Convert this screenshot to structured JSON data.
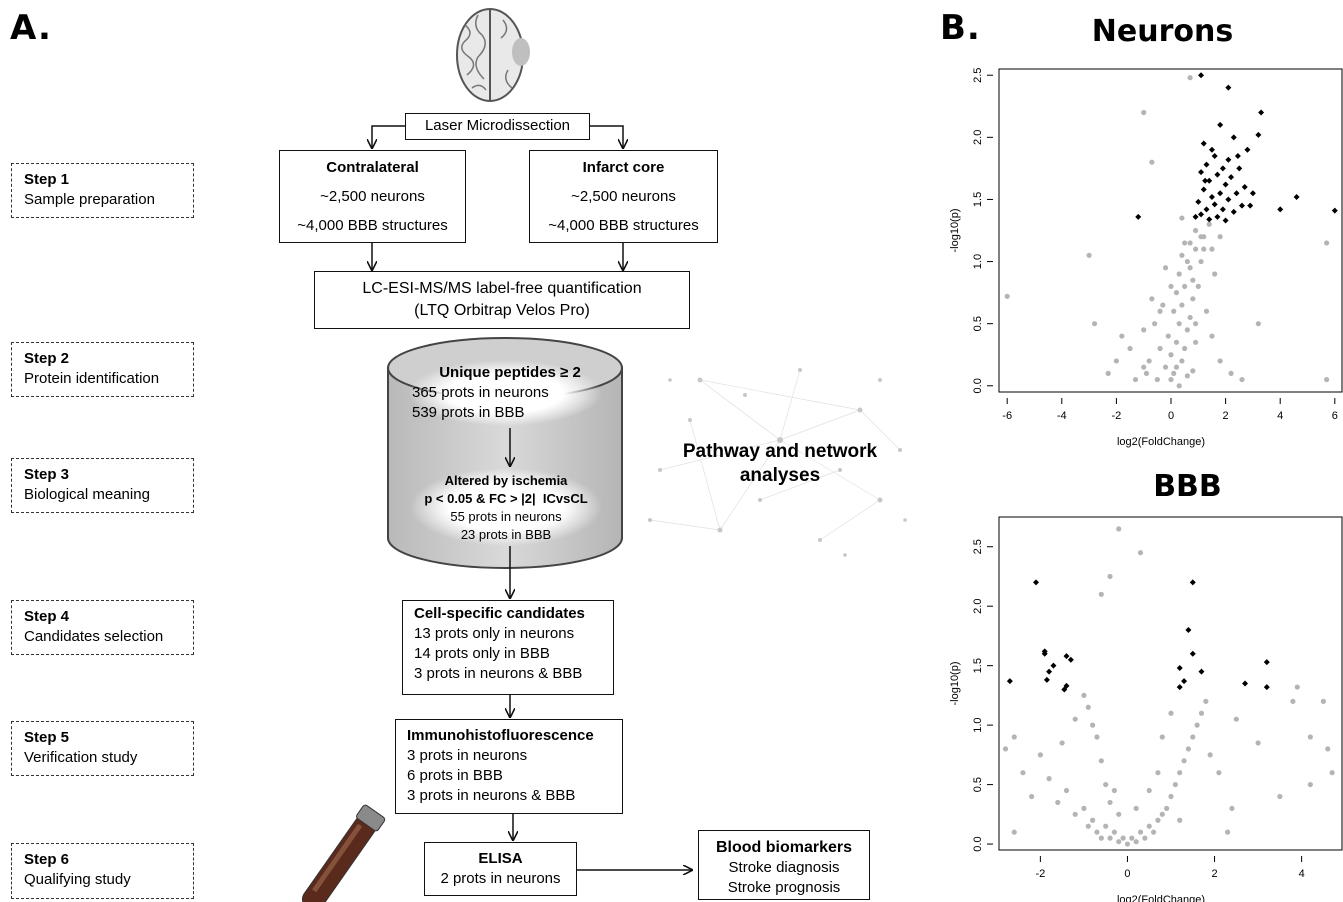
{
  "panel_a_label": "A.",
  "panel_b_label": "B.",
  "steps": [
    {
      "title": "Step 1",
      "desc": "Sample preparation"
    },
    {
      "title": "Step 2",
      "desc": "Protein identification"
    },
    {
      "title": "Step 3",
      "desc": "Biological meaning"
    },
    {
      "title": "Step 4",
      "desc": "Candidates selection"
    },
    {
      "title": "Step 5",
      "desc": "Verification study"
    },
    {
      "title": "Step 6",
      "desc": "Qualifying study"
    }
  ],
  "flow": {
    "laser": "Laser Microdissection",
    "contralateral": {
      "title": "Contralateral",
      "line1": "~2,500 neurons",
      "line2": "~4,000 BBB structures"
    },
    "infarct": {
      "title": "Infarct core",
      "line1": "~2,500 neurons",
      "line2": "~4,000 BBB structures"
    },
    "lcms": {
      "line1": "LC-ESI-MS/MS label-free quantification",
      "line2": "(LTQ Orbitrap Velos Pro)"
    },
    "unique": {
      "title": "Unique peptides ≥ 2",
      "line1": "365 prots in neurons",
      "line2": "539 prots in BBB"
    },
    "altered": {
      "title": "Altered by ischemia",
      "line1": "p < 0.05 & FC > |2|  ICvsCL",
      "line2": "55 prots in neurons",
      "line3": "23 prots in BBB"
    },
    "network": {
      "line1": "Pathway and network",
      "line2": "analyses"
    },
    "candidates": {
      "title": "Cell-specific candidates",
      "line1": "13 prots only in neurons",
      "line2": "14 prots only in BBB",
      "line3": "3 prots in neurons & BBB"
    },
    "ihf": {
      "title": "Immunohistofluorescence",
      "line1": "3 prots in neurons",
      "line2": "6 prots in BBB",
      "line3": "3 prots in neurons & BBB"
    },
    "elisa": {
      "title": "ELISA",
      "line1": "2 prots in neurons"
    },
    "biomarkers": {
      "title": "Blood biomarkers",
      "line1": "Stroke diagnosis",
      "line2": "Stroke prognosis"
    }
  },
  "colors": {
    "significant": "#000000",
    "nonsignificant": "#b4b4b4"
  },
  "chart_data": [
    {
      "type": "scatter",
      "title": "Neurons",
      "xlabel": "log2(FoldChange)",
      "ylabel": "-log10(p)",
      "xlim": [
        -6.3,
        6.3
      ],
      "ylim": [
        -0.05,
        2.55
      ],
      "xticks": [
        "-6",
        "-4",
        "-2",
        "0",
        "2",
        "4",
        "6"
      ],
      "yticks": [
        "0.0",
        "0.5",
        "1.0",
        "1.5",
        "2.0",
        "2.5"
      ],
      "series": [
        {
          "points": [
            [
              1.1,
              2.5
            ],
            [
              2.1,
              2.4
            ],
            [
              3.3,
              2.2
            ],
            [
              1.8,
              2.1
            ],
            [
              2.3,
              2.0
            ],
            [
              3.2,
              2.02
            ],
            [
              1.2,
              1.95
            ],
            [
              1.5,
              1.9
            ],
            [
              2.8,
              1.9
            ],
            [
              1.6,
              1.85
            ],
            [
              2.1,
              1.82
            ],
            [
              1.3,
              1.78
            ],
            [
              1.9,
              1.75
            ],
            [
              2.5,
              1.75
            ],
            [
              1.1,
              1.72
            ],
            [
              1.7,
              1.7
            ],
            [
              2.2,
              1.68
            ],
            [
              1.4,
              1.65
            ],
            [
              2.0,
              1.62
            ],
            [
              2.7,
              1.6
            ],
            [
              1.2,
              1.58
            ],
            [
              1.8,
              1.55
            ],
            [
              2.4,
              1.55
            ],
            [
              3.0,
              1.55
            ],
            [
              1.5,
              1.52
            ],
            [
              2.1,
              1.5
            ],
            [
              1.0,
              1.48
            ],
            [
              1.6,
              1.46
            ],
            [
              2.6,
              1.45
            ],
            [
              1.3,
              1.42
            ],
            [
              1.9,
              1.42
            ],
            [
              2.3,
              1.4
            ],
            [
              1.1,
              1.38
            ],
            [
              1.7,
              1.36
            ],
            [
              0.9,
              1.36
            ],
            [
              1.4,
              1.34
            ],
            [
              2.0,
              1.33
            ],
            [
              -1.2,
              1.36
            ],
            [
              4.0,
              1.42
            ],
            [
              4.6,
              1.52
            ],
            [
              6.0,
              1.41
            ],
            [
              2.9,
              1.45
            ],
            [
              1.25,
              1.65
            ],
            [
              2.45,
              1.85
            ]
          ]
        },
        {
          "points": [
            [
              0.3,
              0.0
            ],
            [
              -0.5,
              0.05
            ],
            [
              0.1,
              0.1
            ],
            [
              0.6,
              0.08
            ],
            [
              -0.2,
              0.15
            ],
            [
              0.4,
              0.2
            ],
            [
              0.8,
              0.12
            ],
            [
              -0.8,
              0.2
            ],
            [
              0.0,
              0.25
            ],
            [
              0.5,
              0.3
            ],
            [
              -0.4,
              0.3
            ],
            [
              0.2,
              0.35
            ],
            [
              0.9,
              0.35
            ],
            [
              -0.1,
              0.4
            ],
            [
              0.6,
              0.45
            ],
            [
              0.3,
              0.5
            ],
            [
              -0.6,
              0.5
            ],
            [
              0.7,
              0.55
            ],
            [
              0.1,
              0.6
            ],
            [
              0.4,
              0.65
            ],
            [
              -0.3,
              0.65
            ],
            [
              0.8,
              0.7
            ],
            [
              0.2,
              0.75
            ],
            [
              0.5,
              0.8
            ],
            [
              1.0,
              0.8
            ],
            [
              0.3,
              0.9
            ],
            [
              0.7,
              0.95
            ],
            [
              0.6,
              1.0
            ],
            [
              1.1,
              1.0
            ],
            [
              0.4,
              1.05
            ],
            [
              0.9,
              1.1
            ],
            [
              0.7,
              1.15
            ],
            [
              1.2,
              1.2
            ],
            [
              0.9,
              1.25
            ],
            [
              1.4,
              1.3
            ],
            [
              1.1,
              1.2
            ],
            [
              0.5,
              1.15
            ],
            [
              0.8,
              0.85
            ],
            [
              -0.9,
              0.1
            ],
            [
              -1.3,
              0.05
            ],
            [
              -1.8,
              0.4
            ],
            [
              -2.3,
              0.1
            ],
            [
              -2.8,
              0.5
            ],
            [
              -3.0,
              1.05
            ],
            [
              -6.0,
              0.72
            ],
            [
              -2.0,
              0.2
            ],
            [
              -1.5,
              0.3
            ],
            [
              -1.0,
              0.45
            ],
            [
              -0.7,
              0.7
            ],
            [
              -0.2,
              0.95
            ],
            [
              0.0,
              0.8
            ],
            [
              -1.0,
              0.15
            ],
            [
              1.5,
              0.4
            ],
            [
              1.8,
              0.2
            ],
            [
              2.2,
              0.1
            ],
            [
              2.6,
              0.05
            ],
            [
              3.2,
              0.5
            ],
            [
              5.7,
              0.05
            ],
            [
              5.7,
              1.15
            ],
            [
              0.2,
              0.15
            ],
            [
              0.0,
              0.05
            ],
            [
              -0.4,
              0.6
            ],
            [
              1.3,
              0.6
            ],
            [
              0.9,
              0.5
            ],
            [
              1.6,
              0.9
            ],
            [
              1.8,
              1.2
            ],
            [
              -0.7,
              1.8
            ],
            [
              -1.0,
              2.2
            ],
            [
              0.7,
              2.48
            ],
            [
              1.2,
              1.1
            ],
            [
              0.4,
              1.35
            ],
            [
              1.5,
              1.1
            ]
          ]
        }
      ]
    },
    {
      "type": "scatter",
      "title": "BBB",
      "xlabel": "log2(FoldChange)",
      "ylabel": "-log10(p)",
      "xlim": [
        -2.95,
        4.95
      ],
      "ylim": [
        -0.05,
        2.75
      ],
      "xticks": [
        "-2",
        "0",
        "2",
        "4"
      ],
      "yticks": [
        "0.0",
        "0.5",
        "1.0",
        "1.5",
        "2.0",
        "2.5"
      ],
      "series": [
        {
          "points": [
            [
              -2.1,
              2.2
            ],
            [
              -1.9,
              1.62
            ],
            [
              -1.9,
              1.6
            ],
            [
              -1.7,
              1.5
            ],
            [
              -1.8,
              1.45
            ],
            [
              -1.85,
              1.38
            ],
            [
              -1.4,
              1.58
            ],
            [
              -1.3,
              1.55
            ],
            [
              -1.4,
              1.33
            ],
            [
              -1.45,
              1.3
            ],
            [
              -2.7,
              1.37
            ],
            [
              1.5,
              2.2
            ],
            [
              1.4,
              1.8
            ],
            [
              1.5,
              1.6
            ],
            [
              1.2,
              1.48
            ],
            [
              1.7,
              1.45
            ],
            [
              1.3,
              1.37
            ],
            [
              1.2,
              1.32
            ],
            [
              2.7,
              1.35
            ],
            [
              3.2,
              1.53
            ],
            [
              3.2,
              1.32
            ]
          ]
        },
        {
          "points": [
            [
              -2.8,
              0.8
            ],
            [
              -2.6,
              0.9
            ],
            [
              -2.4,
              0.6
            ],
            [
              -2.2,
              0.4
            ],
            [
              -2.0,
              0.75
            ],
            [
              -1.8,
              0.55
            ],
            [
              -1.6,
              0.35
            ],
            [
              -1.4,
              0.45
            ],
            [
              -1.2,
              0.25
            ],
            [
              -1.0,
              0.3
            ],
            [
              -0.9,
              0.15
            ],
            [
              -0.8,
              0.2
            ],
            [
              -0.7,
              0.1
            ],
            [
              -0.6,
              0.05
            ],
            [
              -0.5,
              0.15
            ],
            [
              -0.4,
              0.05
            ],
            [
              -0.3,
              0.1
            ],
            [
              -0.2,
              0.02
            ],
            [
              -0.1,
              0.05
            ],
            [
              0.0,
              0.0
            ],
            [
              0.1,
              0.05
            ],
            [
              0.2,
              0.02
            ],
            [
              0.3,
              0.1
            ],
            [
              0.4,
              0.05
            ],
            [
              0.5,
              0.15
            ],
            [
              0.6,
              0.1
            ],
            [
              0.7,
              0.2
            ],
            [
              0.8,
              0.25
            ],
            [
              0.9,
              0.3
            ],
            [
              1.0,
              0.4
            ],
            [
              1.1,
              0.5
            ],
            [
              1.2,
              0.6
            ],
            [
              1.3,
              0.7
            ],
            [
              1.4,
              0.8
            ],
            [
              1.5,
              0.9
            ],
            [
              1.6,
              1.0
            ],
            [
              1.7,
              1.1
            ],
            [
              1.8,
              1.2
            ],
            [
              1.0,
              1.1
            ],
            [
              0.8,
              0.9
            ],
            [
              0.7,
              0.6
            ],
            [
              -0.5,
              0.5
            ],
            [
              -0.6,
              0.7
            ],
            [
              -0.7,
              0.9
            ],
            [
              -0.8,
              1.0
            ],
            [
              -0.9,
              1.15
            ],
            [
              -1.0,
              1.25
            ],
            [
              -0.4,
              0.35
            ],
            [
              -0.3,
              0.45
            ],
            [
              -0.2,
              0.25
            ],
            [
              0.2,
              0.3
            ],
            [
              0.5,
              0.45
            ],
            [
              -1.2,
              1.05
            ],
            [
              -0.4,
              2.25
            ],
            [
              -0.6,
              2.1
            ],
            [
              -0.2,
              2.65
            ],
            [
              0.3,
              2.45
            ],
            [
              2.1,
              0.6
            ],
            [
              2.4,
              0.3
            ],
            [
              2.5,
              1.05
            ],
            [
              3.0,
              0.85
            ],
            [
              3.5,
              0.4
            ],
            [
              3.8,
              1.2
            ],
            [
              4.2,
              0.5
            ],
            [
              4.6,
              0.8
            ],
            [
              4.7,
              0.6
            ],
            [
              4.5,
              1.2
            ],
            [
              3.9,
              1.32
            ],
            [
              4.2,
              0.9
            ],
            [
              2.3,
              0.1
            ],
            [
              -2.6,
              0.1
            ],
            [
              -1.5,
              0.85
            ],
            [
              1.9,
              0.75
            ],
            [
              1.2,
              0.2
            ]
          ]
        }
      ]
    }
  ]
}
